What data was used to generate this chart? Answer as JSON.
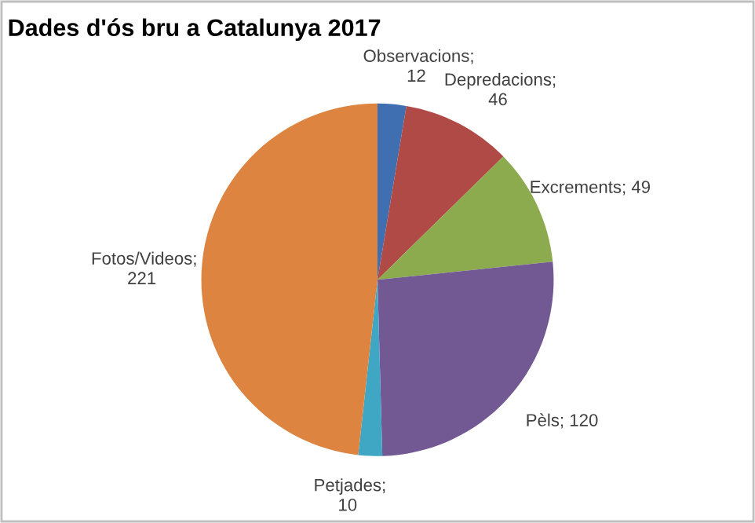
{
  "chart_data": {
    "type": "pie",
    "title": "Dades d'ós bru a Catalunya 2017",
    "categories": [
      "Observacions",
      "Depredacions",
      "Excrements",
      "Pèls",
      "Petjades",
      "Fotos/Videos"
    ],
    "values": [
      12,
      46,
      49,
      120,
      10,
      221
    ],
    "colors": [
      "#3f6fb0",
      "#b04a47",
      "#8cab4e",
      "#725994",
      "#3fa6c4",
      "#dd8540"
    ],
    "value_labels": [
      "; 12",
      "; 46",
      "; 49",
      "; 120",
      "; 10",
      "; 221"
    ],
    "legend": false
  }
}
